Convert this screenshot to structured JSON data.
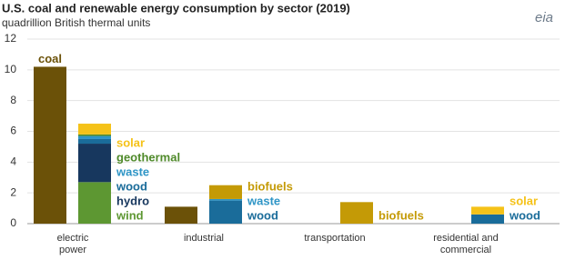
{
  "chart_data": {
    "type": "bar",
    "title": "U.S. coal and renewable energy consumption by sector (2019)",
    "subtitle": "quadrillion British thermal units",
    "logo": "eia",
    "categories": [
      "electric power",
      "industrial",
      "transportation",
      "residential and commercial"
    ],
    "series": [
      {
        "name": "coal",
        "color": "#6b5108",
        "values": [
          10.2,
          1.1,
          null,
          null
        ]
      },
      {
        "name": "wind",
        "color": "#5d9732",
        "values": [
          2.7,
          null,
          null,
          null
        ]
      },
      {
        "name": "hydro",
        "color": "#17375e",
        "values": [
          2.5,
          null,
          null,
          null
        ]
      },
      {
        "name": "wood",
        "color": "#1a6c9a",
        "values": [
          0.3,
          1.5,
          null,
          0.6
        ]
      },
      {
        "name": "waste",
        "color": "#2e95c6",
        "values": [
          0.2,
          0.1,
          null,
          null
        ]
      },
      {
        "name": "geothermal",
        "color": "#4f8a2a",
        "values": [
          0.1,
          null,
          null,
          null
        ]
      },
      {
        "name": "biofuels",
        "color": "#c49a06",
        "values": [
          null,
          0.9,
          1.4,
          null
        ]
      },
      {
        "name": "solar",
        "color": "#f5c218",
        "values": [
          0.7,
          null,
          null,
          0.5
        ]
      }
    ],
    "ylim": [
      0,
      12
    ],
    "yticks": [
      0,
      2,
      4,
      6,
      8,
      10,
      12
    ],
    "grid": true
  }
}
